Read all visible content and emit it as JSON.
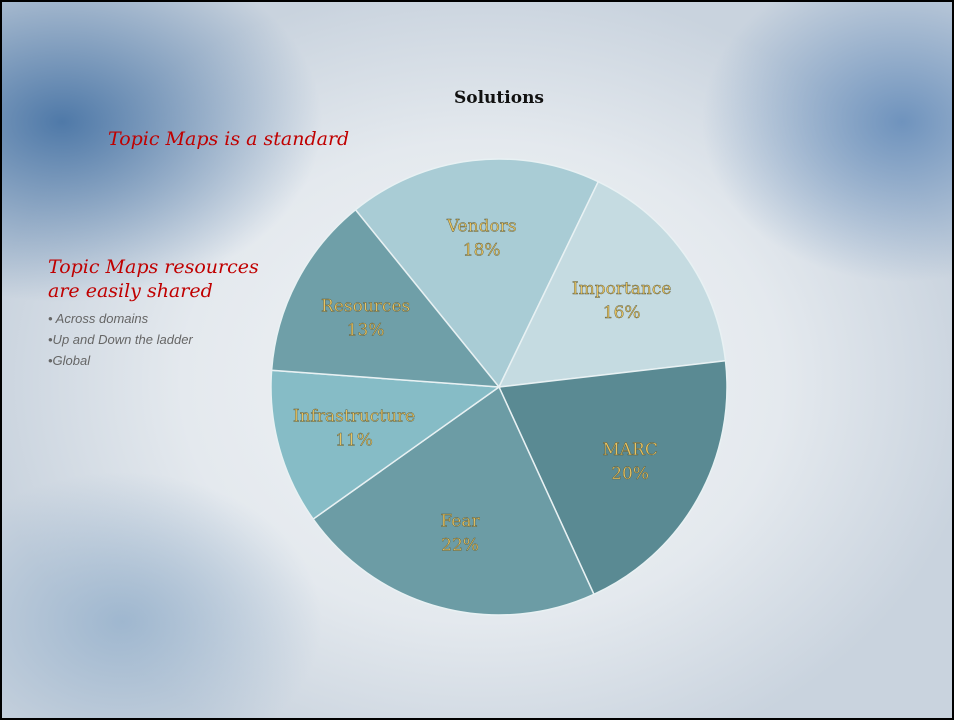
{
  "chart_data": {
    "type": "pie",
    "title": "Solutions",
    "categories": [
      "Vendors",
      "Importance",
      "MARC",
      "Fear",
      "Infrastructure",
      "Resources"
    ],
    "values": [
      18,
      16,
      20,
      22,
      11,
      13
    ],
    "value_labels": [
      "18%",
      "16%",
      "20%",
      "22%",
      "11%",
      "13%"
    ],
    "colors": [
      "#a9ccd5",
      "#c5dbe1",
      "#5a8a93",
      "#6c9ca5",
      "#86bcc6",
      "#6f9fa8"
    ]
  },
  "slide": {
    "headline": "Topic Maps is a standard",
    "point_lines": [
      "Topic Maps resources",
      "are easily shared"
    ],
    "bullets": [
      "• Across domains",
      "•Up and Down the ladder",
      "•Global"
    ]
  }
}
